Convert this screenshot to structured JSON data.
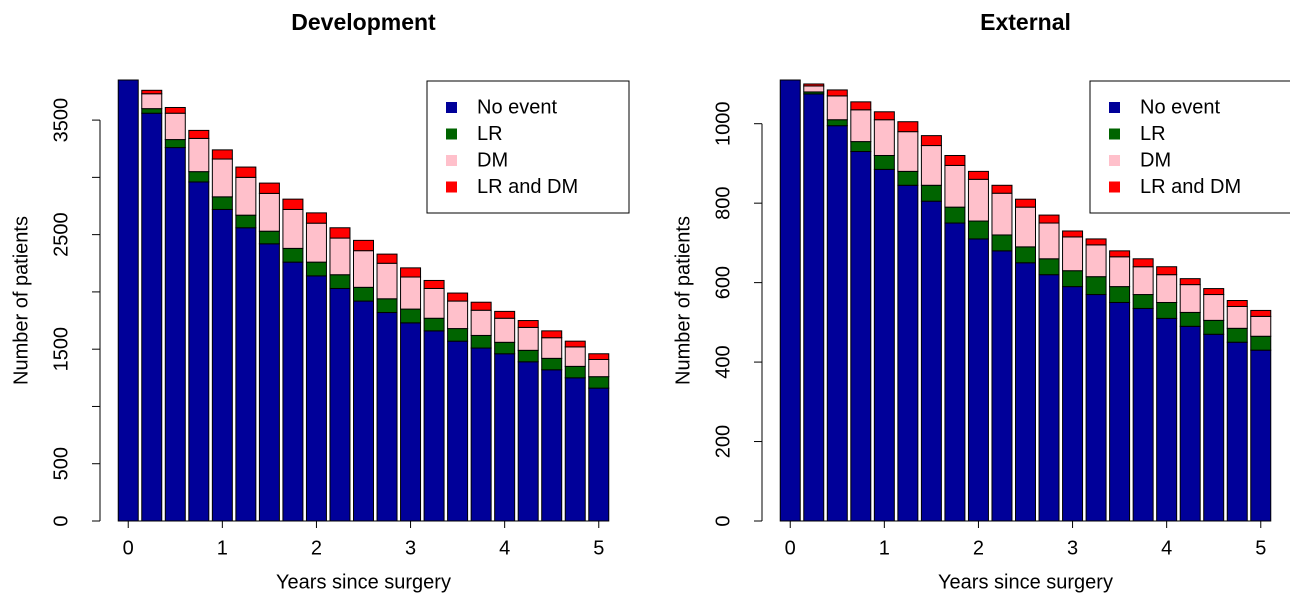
{
  "chart_data": [
    {
      "type": "bar",
      "stacked": true,
      "title": "Development",
      "xlabel": "Years since surgery",
      "ylabel": "Number of patients",
      "x": [
        0,
        0.25,
        0.5,
        0.75,
        1,
        1.25,
        1.5,
        1.75,
        2,
        2.25,
        2.5,
        2.75,
        3,
        3.25,
        3.5,
        3.75,
        4,
        4.25,
        4.5,
        4.75,
        5
      ],
      "series": [
        {
          "name": "No event",
          "color": "#000099",
          "values": [
            3850,
            3560,
            3260,
            2960,
            2720,
            2560,
            2420,
            2260,
            2140,
            2030,
            1920,
            1820,
            1730,
            1660,
            1570,
            1510,
            1460,
            1390,
            1320,
            1250,
            1160
          ]
        },
        {
          "name": "LR",
          "color": "#006400",
          "values": [
            0,
            40,
            70,
            90,
            110,
            110,
            110,
            120,
            120,
            120,
            120,
            120,
            120,
            110,
            110,
            110,
            100,
            100,
            100,
            100,
            100
          ]
        },
        {
          "name": "DM",
          "color": "#FFC0CB",
          "values": [
            0,
            130,
            230,
            290,
            330,
            330,
            330,
            340,
            340,
            320,
            320,
            310,
            280,
            260,
            240,
            220,
            210,
            200,
            180,
            170,
            150
          ]
        },
        {
          "name": "LR and DM",
          "color": "#FF0000",
          "values": [
            0,
            30,
            50,
            70,
            80,
            90,
            90,
            90,
            90,
            90,
            90,
            80,
            80,
            70,
            70,
            70,
            60,
            60,
            60,
            50,
            50
          ]
        }
      ],
      "xlim": [
        -0.3,
        5.3
      ],
      "xticks": [
        0,
        1,
        2,
        3,
        4,
        5
      ],
      "ylim": [
        0,
        3850
      ],
      "yticks": [
        0,
        500,
        {
          "value": 1000,
          "label": null
        },
        1500,
        {
          "value": 2000,
          "label": null
        },
        2500,
        {
          "value": 3000,
          "label": null
        },
        3500
      ],
      "legend": "topright"
    },
    {
      "type": "bar",
      "stacked": true,
      "title": "External",
      "xlabel": "Years since surgery",
      "ylabel": "Number of patients",
      "x": [
        0,
        0.25,
        0.5,
        0.75,
        1,
        1.25,
        1.5,
        1.75,
        2,
        2.25,
        2.5,
        2.75,
        3,
        3.25,
        3.5,
        3.75,
        4,
        4.25,
        4.5,
        4.75,
        5
      ],
      "series": [
        {
          "name": "No event",
          "color": "#000099",
          "values": [
            1110,
            1075,
            995,
            930,
            885,
            845,
            805,
            750,
            710,
            680,
            650,
            620,
            590,
            570,
            550,
            535,
            510,
            490,
            470,
            450,
            430
          ]
        },
        {
          "name": "LR",
          "color": "#006400",
          "values": [
            0,
            5,
            15,
            25,
            35,
            35,
            40,
            40,
            45,
            40,
            40,
            40,
            40,
            45,
            40,
            35,
            40,
            35,
            35,
            35,
            35
          ]
        },
        {
          "name": "DM",
          "color": "#FFC0CB",
          "values": [
            0,
            15,
            60,
            80,
            90,
            100,
            100,
            105,
            105,
            105,
            100,
            90,
            85,
            80,
            75,
            70,
            70,
            70,
            65,
            55,
            50
          ]
        },
        {
          "name": "LR and DM",
          "color": "#FF0000",
          "values": [
            0,
            5,
            15,
            20,
            20,
            25,
            25,
            25,
            20,
            20,
            20,
            20,
            15,
            15,
            15,
            20,
            20,
            15,
            15,
            15,
            15
          ]
        }
      ],
      "xlim": [
        -0.3,
        5.3
      ],
      "xticks": [
        0,
        1,
        2,
        3,
        4,
        5
      ],
      "ylim": [
        0,
        1110
      ],
      "yticks": [
        0,
        200,
        400,
        600,
        800,
        1000
      ],
      "legend": "topright"
    }
  ]
}
